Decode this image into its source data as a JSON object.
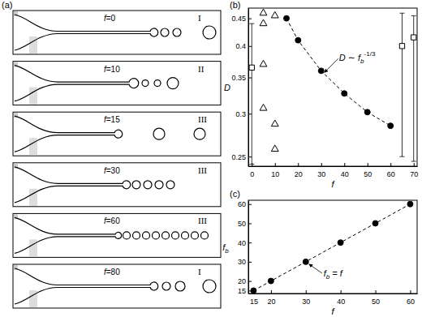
{
  "diagram": {
    "label": "(a)",
    "panels": [
      {
        "label": "f=0",
        "regime": "I"
      },
      {
        "label": "f=10",
        "regime": "II"
      },
      {
        "label": "f=15",
        "regime": "III"
      },
      {
        "label": "f=30",
        "regime": "III"
      },
      {
        "label": "f=60",
        "regime": "III"
      },
      {
        "label": "f=80",
        "regime": "I"
      }
    ]
  },
  "chart_data": [
    {
      "type": "scatter",
      "label": "(b)",
      "x_label": "f",
      "y_label": {
        "text": "D"
      },
      "log": "y",
      "xlim": [
        -1.5,
        71.5
      ],
      "xticks": [
        0,
        10,
        20,
        30,
        40,
        50,
        60,
        70
      ],
      "ylim": [
        0.24,
        0.47
      ],
      "yticks": [
        0.25,
        0.3,
        0.35,
        0.4,
        0.45
      ],
      "annotation": {
        "text": "D ∼ f",
        "sub": "b",
        "sup": "-1/3"
      },
      "series": [
        {
          "marker": "circle",
          "line_style": "dashed",
          "color": "#000000",
          "x": [
            15,
            20,
            30,
            40,
            50,
            60
          ],
          "values": [
            0.45,
            0.41,
            0.36,
            0.327,
            0.302,
            0.285
          ]
        },
        {
          "marker": "triangle-open",
          "color": "#000000",
          "x": [
            5,
            5,
            5,
            5,
            10,
            10,
            10
          ],
          "values": [
            0.46,
            0.44,
            0.37,
            0.307,
            0.455,
            0.287,
            0.258
          ]
        },
        {
          "marker": "square-open",
          "color": "#000000",
          "x": [
            0,
            65,
            70
          ],
          "values": [
            0.365,
            0.4,
            0.415
          ],
          "error_low": [
            0.242,
            0.25,
            0.245
          ],
          "error_high": [
            0.44,
            0.46,
            0.455
          ]
        }
      ]
    },
    {
      "type": "scatter",
      "label": "(c)",
      "x_label": "f",
      "y_label": {
        "text": "f",
        "sub": "b"
      },
      "xlim": [
        13.5,
        62
      ],
      "xticks": [
        15,
        20,
        30,
        40,
        50,
        60
      ],
      "ylim": [
        13.5,
        62
      ],
      "yticks": [
        15,
        20,
        30,
        40,
        50,
        60
      ],
      "annotation": {
        "text": "f",
        "sub": "b",
        "after": " = f"
      },
      "series": [
        {
          "marker": "circle",
          "line_style": "dashed",
          "color": "#000000",
          "x": [
            15,
            20,
            30,
            40,
            50,
            60
          ],
          "values": [
            15,
            20,
            30,
            40,
            50,
            60
          ]
        }
      ]
    }
  ]
}
